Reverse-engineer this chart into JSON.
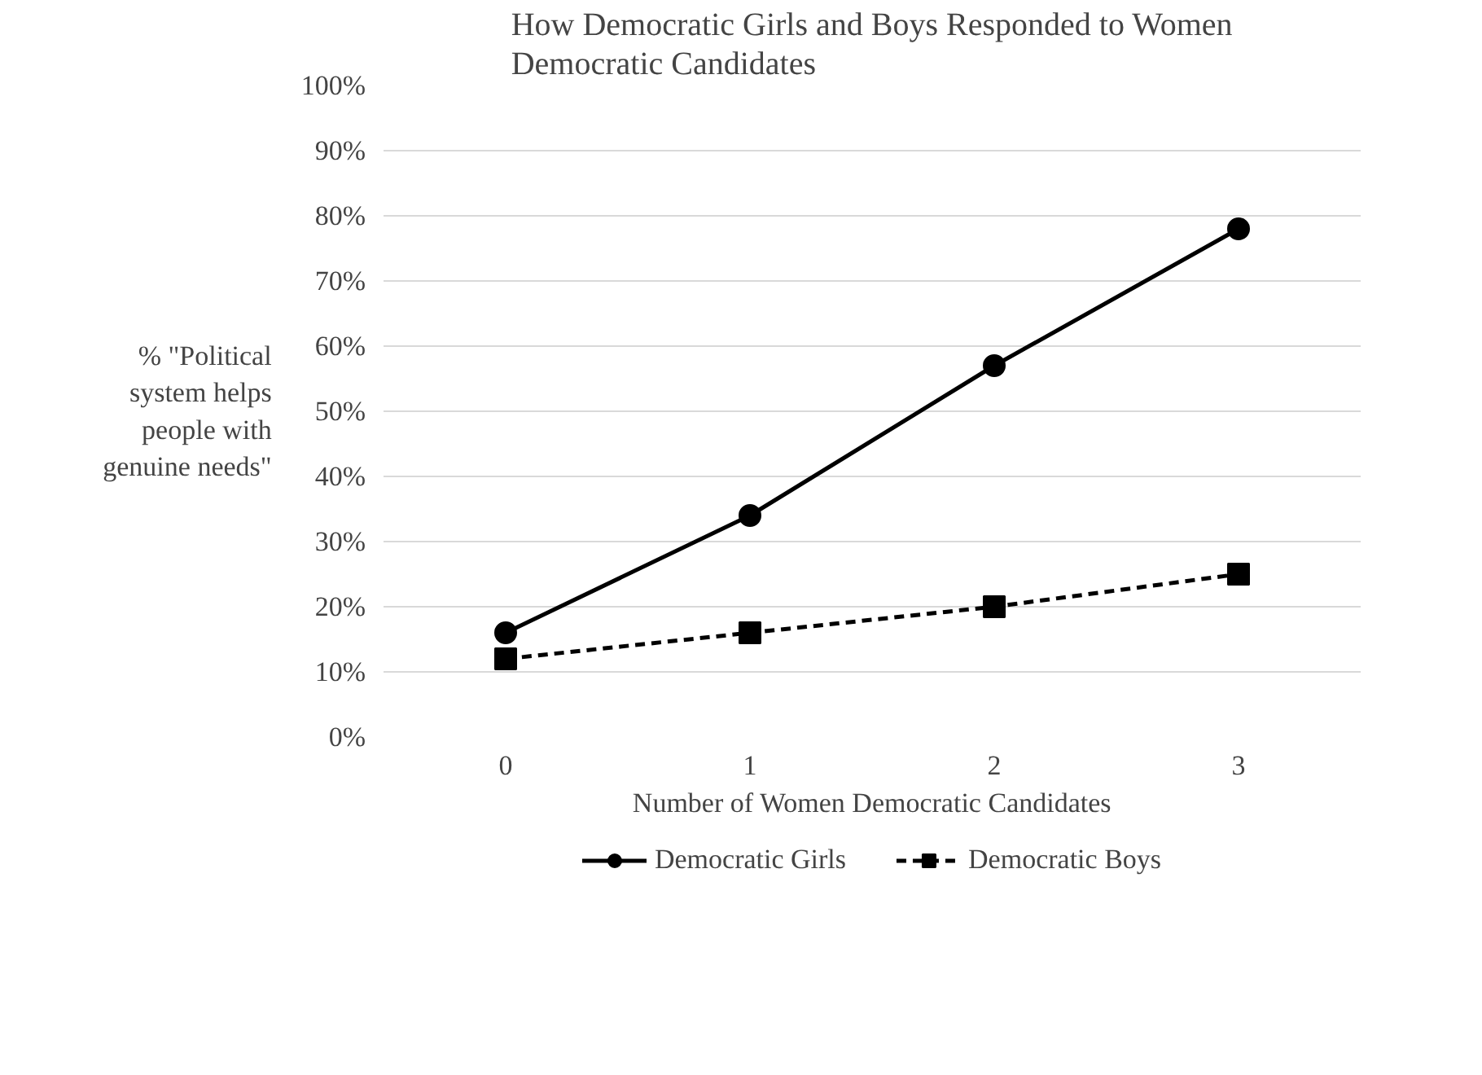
{
  "chart_data": {
    "type": "line",
    "title": "How Democratic Girls and Boys Responded to Women Democratic Candidates",
    "xlabel": "Number of Women Democratic Candidates",
    "ylabel": "% \"Political system helps people with genuine needs\"",
    "categories": [
      "0",
      "1",
      "2",
      "3"
    ],
    "ylim": [
      0,
      100
    ],
    "yticks": [
      {
        "value": 0,
        "label": "0%"
      },
      {
        "value": 10,
        "label": "10%"
      },
      {
        "value": 20,
        "label": "20%"
      },
      {
        "value": 30,
        "label": "30%"
      },
      {
        "value": 40,
        "label": "40%"
      },
      {
        "value": 50,
        "label": "50%"
      },
      {
        "value": 60,
        "label": "60%"
      },
      {
        "value": 70,
        "label": "70%"
      },
      {
        "value": 80,
        "label": "80%"
      },
      {
        "value": 90,
        "label": "90%"
      },
      {
        "value": 100,
        "label": "100%"
      }
    ],
    "grid": "y",
    "legend": "bottom",
    "series": [
      {
        "name": "Democratic Girls",
        "color": "#000000",
        "values": [
          16,
          34,
          57,
          78
        ],
        "marker": "circle",
        "line_style": "solid"
      },
      {
        "name": "Democratic Boys",
        "color": "#000000",
        "values": [
          12,
          16,
          20,
          25
        ],
        "marker": "square",
        "line_style": "dashed"
      }
    ]
  }
}
